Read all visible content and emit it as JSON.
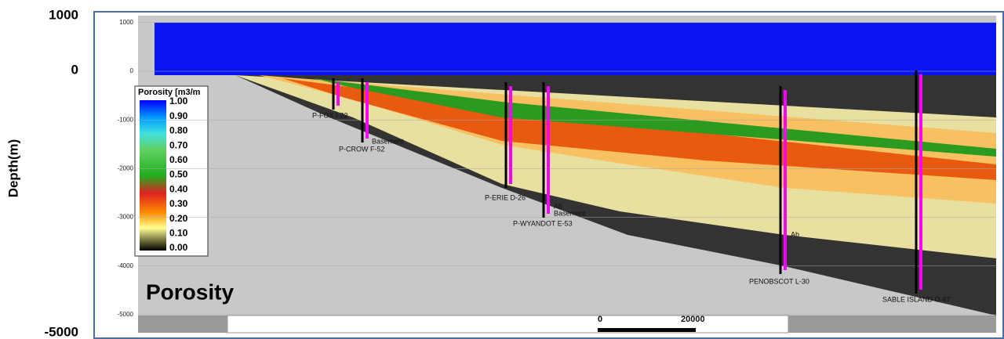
{
  "outer_axis": {
    "label": "Depth(m)",
    "ticks": [
      "1000",
      "0",
      "-5000"
    ]
  },
  "inner_axis": {
    "ticks": [
      1000,
      0,
      -1000,
      -2000,
      -3000,
      -4000,
      -5000
    ]
  },
  "legend": {
    "title": "Porosity [m3/m",
    "labels": [
      "1.00",
      "0.90",
      "0.80",
      "0.70",
      "0.60",
      "0.50",
      "0.40",
      "0.30",
      "0.20",
      "0.10",
      "0.00"
    ]
  },
  "wells": [
    "P-FOX I-22",
    "P-CROW F-52",
    "P-ERIE D-26",
    "P-WYANDOT E-53",
    "PENOBSCOT L-30",
    "SABLE ISLAND O-47"
  ],
  "well_notes": [
    "Basement",
    "Ab",
    "Basement",
    "Ab"
  ],
  "panel_title": "Porosity",
  "scale_bar": [
    "0",
    "20000"
  ]
}
